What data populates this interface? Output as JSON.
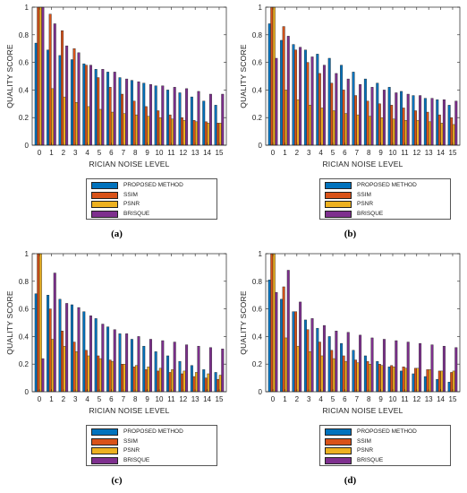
{
  "colors": {
    "PROPOSED METHOD": "#0072BD",
    "SSIM": "#D95319",
    "PSNR": "#EDB120",
    "BRISQUE": "#7E2F8E"
  },
  "chart_data": [
    {
      "type": "bar",
      "caption": "(a)",
      "xlabel": "RICIAN NOISE LEVEL",
      "ylabel": "QUALITY SCORE",
      "ylim": [
        0,
        1
      ],
      "yticks": [
        "0",
        "0.2",
        "0.4",
        "0.6",
        "0.8",
        "1"
      ],
      "categories": [
        "0",
        "1",
        "2",
        "3",
        "4",
        "5",
        "6",
        "7",
        "8",
        "9",
        "10",
        "11",
        "12",
        "13",
        "14",
        "15"
      ],
      "legend": [
        "PROPOSED METHOD",
        "SSIM",
        "PSNR",
        "BRISQUE"
      ],
      "legend_position": "bottom",
      "series": [
        {
          "name": "PROPOSED METHOD",
          "values": [
            0.74,
            0.69,
            0.65,
            0.62,
            0.59,
            0.55,
            0.53,
            0.49,
            0.47,
            0.45,
            0.43,
            0.4,
            0.38,
            0.35,
            0.32,
            0.29
          ]
        },
        {
          "name": "SSIM",
          "values": [
            1.0,
            0.95,
            0.83,
            0.7,
            0.58,
            0.49,
            0.42,
            0.37,
            0.32,
            0.28,
            0.25,
            0.22,
            0.2,
            0.18,
            0.17,
            0.16
          ]
        },
        {
          "name": "PSNR",
          "values": [
            1.0,
            0.41,
            0.35,
            0.31,
            0.28,
            0.26,
            0.24,
            0.23,
            0.22,
            0.21,
            0.2,
            0.19,
            0.18,
            0.17,
            0.16,
            0.16
          ]
        },
        {
          "name": "BRISQUE",
          "values": [
            1.0,
            0.88,
            0.72,
            0.67,
            0.58,
            0.55,
            0.53,
            0.48,
            0.46,
            0.44,
            0.43,
            0.42,
            0.41,
            0.39,
            0.37,
            0.37
          ]
        }
      ]
    },
    {
      "type": "bar",
      "caption": "(b)",
      "xlabel": "RICIAN NOISE LEVEL",
      "ylabel": "QUALITY SCORE",
      "ylim": [
        0,
        1
      ],
      "yticks": [
        "0",
        "0.2",
        "0.4",
        "0.6",
        "0.8",
        "1"
      ],
      "categories": [
        "0",
        "1",
        "2",
        "3",
        "4",
        "5",
        "6",
        "7",
        "8",
        "9",
        "10",
        "11",
        "12",
        "13",
        "14",
        "15"
      ],
      "legend": [
        "PROPOSED METHOD",
        "SSIM",
        "PSNR",
        "BRISQUE"
      ],
      "legend_position": "bottom",
      "series": [
        {
          "name": "PROPOSED METHOD",
          "values": [
            0.88,
            0.76,
            0.73,
            0.69,
            0.66,
            0.63,
            0.58,
            0.53,
            0.48,
            0.45,
            0.42,
            0.39,
            0.36,
            0.34,
            0.33,
            0.29
          ]
        },
        {
          "name": "SSIM",
          "values": [
            1.0,
            0.86,
            0.69,
            0.6,
            0.52,
            0.45,
            0.4,
            0.36,
            0.32,
            0.3,
            0.29,
            0.27,
            0.25,
            0.24,
            0.22,
            0.2
          ]
        },
        {
          "name": "PSNR",
          "values": [
            1.0,
            0.4,
            0.33,
            0.29,
            0.27,
            0.25,
            0.23,
            0.22,
            0.21,
            0.2,
            0.19,
            0.18,
            0.18,
            0.17,
            0.16,
            0.15
          ]
        },
        {
          "name": "BRISQUE",
          "values": [
            0.63,
            0.79,
            0.71,
            0.64,
            0.58,
            0.52,
            0.48,
            0.44,
            0.42,
            0.4,
            0.38,
            0.37,
            0.36,
            0.34,
            0.33,
            0.32
          ]
        }
      ]
    },
    {
      "type": "bar",
      "caption": "(c)",
      "xlabel": "RICIAN NOISE LEVEL",
      "ylabel": "QUALITY SCORE",
      "ylim": [
        0,
        1
      ],
      "yticks": [
        "0",
        "0.2",
        "0.4",
        "0.6",
        "0.8",
        "1"
      ],
      "categories": [
        "0",
        "1",
        "2",
        "3",
        "4",
        "5",
        "6",
        "7",
        "8",
        "9",
        "10",
        "11",
        "12",
        "13",
        "14",
        "15"
      ],
      "legend": [
        "PROPOSED METHOD",
        "SSIM",
        "PSNR",
        "BRISQUE"
      ],
      "legend_position": "bottom",
      "series": [
        {
          "name": "PROPOSED METHOD",
          "values": [
            0.71,
            0.7,
            0.67,
            0.63,
            0.58,
            0.53,
            0.47,
            0.42,
            0.38,
            0.33,
            0.29,
            0.26,
            0.22,
            0.19,
            0.16,
            0.14
          ]
        },
        {
          "name": "SSIM",
          "values": [
            1.0,
            0.6,
            0.44,
            0.36,
            0.3,
            0.26,
            0.23,
            0.2,
            0.18,
            0.16,
            0.15,
            0.14,
            0.13,
            0.11,
            0.1,
            0.09
          ]
        },
        {
          "name": "PSNR",
          "values": [
            1.0,
            0.38,
            0.33,
            0.29,
            0.26,
            0.24,
            0.22,
            0.2,
            0.19,
            0.18,
            0.17,
            0.16,
            0.15,
            0.14,
            0.13,
            0.12
          ]
        },
        {
          "name": "BRISQUE",
          "values": [
            0.24,
            0.86,
            0.64,
            0.61,
            0.55,
            0.49,
            0.45,
            0.42,
            0.4,
            0.38,
            0.37,
            0.36,
            0.34,
            0.33,
            0.32,
            0.31
          ]
        }
      ]
    },
    {
      "type": "bar",
      "caption": "(d)",
      "xlabel": "RICIAN NOISE LEVEL",
      "ylabel": "QUALITY SCORE",
      "ylim": [
        0,
        1
      ],
      "yticks": [
        "0",
        "0.2",
        "0.4",
        "0.6",
        "0.8",
        "1"
      ],
      "categories": [
        "0",
        "1",
        "2",
        "3",
        "4",
        "5",
        "6",
        "7",
        "8",
        "9",
        "10",
        "11",
        "12",
        "13",
        "14",
        "15"
      ],
      "legend": [
        "PROPOSED METHOD",
        "SSIM",
        "PSNR",
        "BRISQUE"
      ],
      "legend_position": "bottom",
      "series": [
        {
          "name": "PROPOSED METHOD",
          "values": [
            0.81,
            0.67,
            0.58,
            0.52,
            0.46,
            0.4,
            0.35,
            0.3,
            0.26,
            0.22,
            0.18,
            0.15,
            0.13,
            0.11,
            0.09,
            0.07
          ]
        },
        {
          "name": "SSIM",
          "values": [
            1.0,
            0.76,
            0.58,
            0.45,
            0.36,
            0.3,
            0.26,
            0.23,
            0.22,
            0.2,
            0.19,
            0.18,
            0.17,
            0.16,
            0.15,
            0.14
          ]
        },
        {
          "name": "PSNR",
          "values": [
            1.0,
            0.39,
            0.33,
            0.29,
            0.26,
            0.24,
            0.22,
            0.21,
            0.2,
            0.19,
            0.18,
            0.17,
            0.17,
            0.16,
            0.15,
            0.15
          ]
        },
        {
          "name": "BRISQUE",
          "values": [
            0.72,
            0.88,
            0.65,
            0.53,
            0.48,
            0.44,
            0.43,
            0.41,
            0.39,
            0.38,
            0.37,
            0.36,
            0.35,
            0.34,
            0.33,
            0.32
          ]
        }
      ]
    }
  ]
}
